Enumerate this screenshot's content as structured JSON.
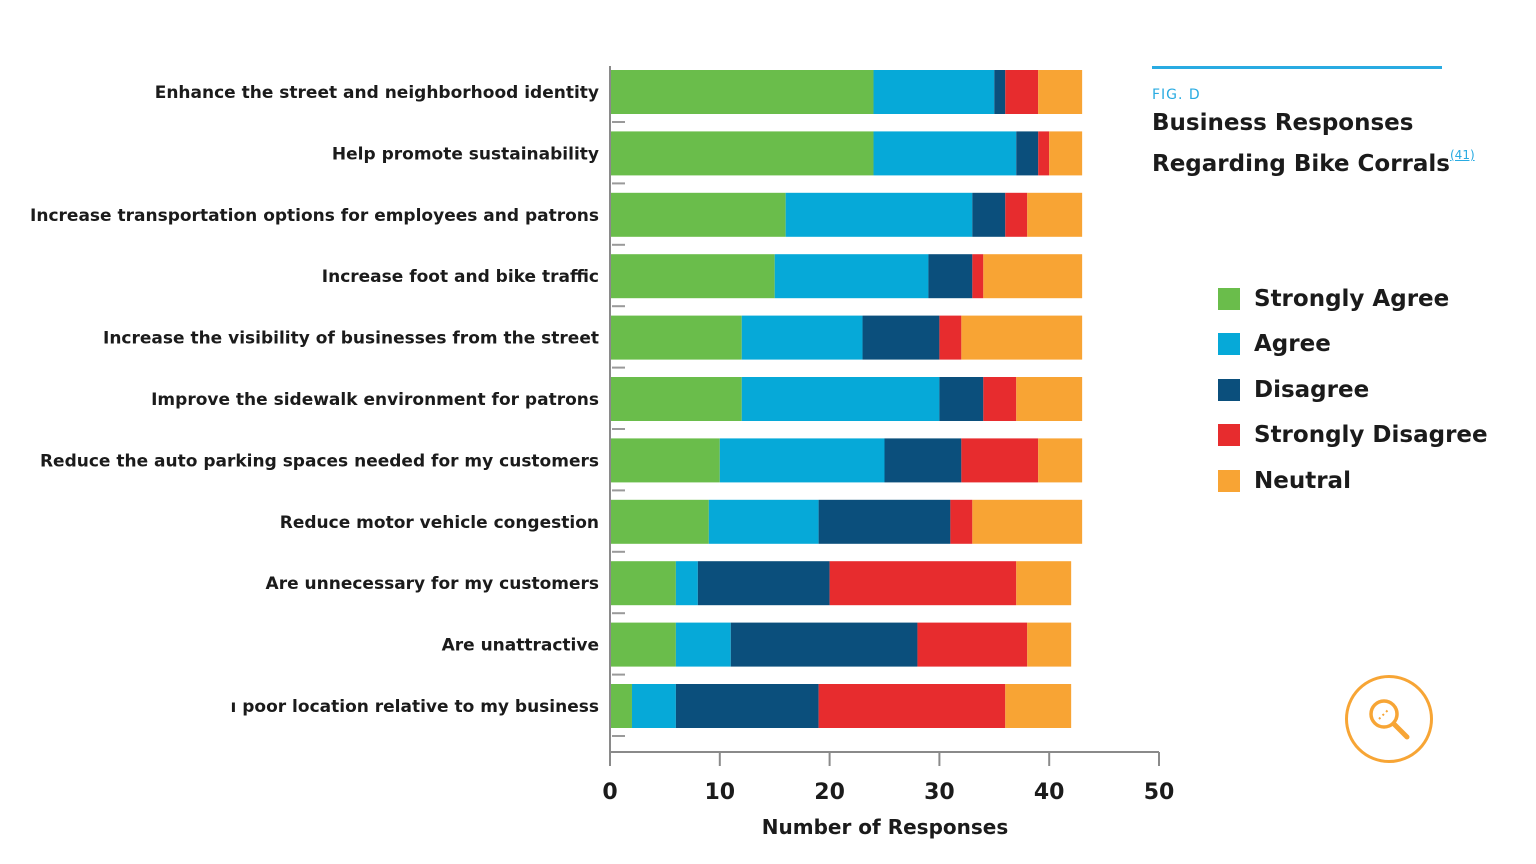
{
  "figure": {
    "tag": "FIG. D",
    "title_line1": "Business Responses",
    "title_line2": "Regarding Bike Corrals",
    "footnote": "(41)"
  },
  "legend": [
    {
      "label": "Strongly Agree",
      "color": "#6abd4b"
    },
    {
      "label": "Agree",
      "color": "#06a9d8"
    },
    {
      "label": "Disagree",
      "color": "#0b4f7c"
    },
    {
      "label": "Strongly Disagree",
      "color": "#e72c2e"
    },
    {
      "label": "Neutral",
      "color": "#f8a434"
    }
  ],
  "zoom_icon": "magnify-icon",
  "chart_data": {
    "type": "bar",
    "orientation": "horizontal",
    "stacked": true,
    "xlabel": "Number of Responses",
    "xlim": [
      0,
      50
    ],
    "xticks": [
      0,
      10,
      20,
      30,
      40,
      50
    ],
    "categories": [
      "Enhance the street and neighborhood identity",
      "Help promote sustainability",
      "Increase transportation options for employees and patrons",
      "Increase foot and bike traffic",
      "Increase the visibility of businesses from the street",
      "Improve the sidewalk environment for patrons",
      "Reduce the auto parking spaces needed for my customers",
      "Reduce motor vehicle congestion",
      "Are unnecessary for my customers",
      "Are unattractive",
      "ı poor location relative to my business"
    ],
    "series": [
      {
        "name": "Strongly Agree",
        "color": "#6abd4b",
        "values": [
          24,
          24,
          16,
          15,
          12,
          12,
          10,
          9,
          6,
          6,
          2
        ]
      },
      {
        "name": "Agree",
        "color": "#06a9d8",
        "values": [
          11,
          13,
          17,
          14,
          11,
          18,
          15,
          10,
          2,
          5,
          4
        ]
      },
      {
        "name": "Disagree",
        "color": "#0b4f7c",
        "values": [
          1,
          2,
          3,
          4,
          7,
          4,
          7,
          12,
          12,
          17,
          13
        ]
      },
      {
        "name": "Strongly Disagree",
        "color": "#e72c2e",
        "values": [
          3,
          1,
          2,
          1,
          2,
          3,
          7,
          2,
          17,
          10,
          17
        ]
      },
      {
        "name": "Neutral",
        "color": "#f8a434",
        "values": [
          4,
          3,
          5,
          9,
          11,
          6,
          4,
          10,
          5,
          4,
          6
        ]
      }
    ],
    "legend_position": "right",
    "grid": false
  }
}
